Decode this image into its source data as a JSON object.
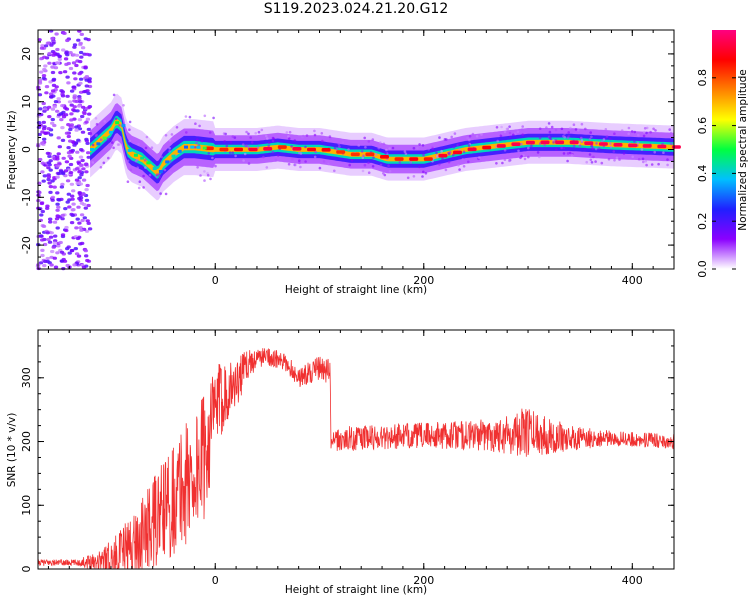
{
  "title": "S119.2023.024.21.20.G12",
  "chart_data": [
    {
      "type": "heatmap",
      "title": "S119.2023.024.21.20.G12",
      "xlabel": "Height of straight line (km)",
      "ylabel": "Frequency (Hz)",
      "xlim": [
        -170,
        440
      ],
      "ylim": [
        -25,
        25
      ],
      "xticks": [
        0,
        200,
        400
      ],
      "yticks": [
        -20,
        -10,
        0,
        10,
        20
      ],
      "colorbar": {
        "label": "Normalized spectral amplitude",
        "range": [
          0,
          1
        ],
        "ticks": [
          0.0,
          0.2,
          0.4,
          0.6,
          0.8
        ],
        "colormap": "rainbow",
        "colors": [
          "#ffffff",
          "#8b00ff",
          "#2020ff",
          "#00c0ff",
          "#00ff40",
          "#ffff00",
          "#ff8000",
          "#ff0000",
          "#ff0080"
        ]
      },
      "ridge": {
        "x": [
          -120,
          -110,
          -100,
          -95,
          -90,
          -85,
          -80,
          -70,
          -60,
          -55,
          -50,
          -40,
          -30,
          -20,
          0,
          20,
          40,
          60,
          80,
          100,
          115,
          130,
          150,
          165,
          180,
          200,
          220,
          240,
          260,
          280,
          300,
          340,
          380,
          440
        ],
        "y": [
          0,
          2,
          4,
          6,
          5,
          0,
          -1,
          -2,
          -4,
          -5,
          -3,
          -1,
          0.5,
          0.5,
          0,
          0,
          0,
          0.5,
          0,
          0,
          -0.5,
          -1,
          -1,
          -2,
          -2,
          -2,
          -1,
          0,
          0.5,
          1,
          1.5,
          1.5,
          1,
          0.5
        ]
      },
      "noise_region_x": [
        -170,
        -120
      ]
    },
    {
      "type": "line",
      "xlabel": "Height of straight line (km)",
      "ylabel": "SNR (10 * v/v)",
      "xlim": [
        -170,
        440
      ],
      "ylim": [
        0,
        375
      ],
      "xticks": [
        0,
        200,
        400
      ],
      "yticks": [
        0,
        100,
        200,
        300
      ],
      "color": "#f03030",
      "envelope": {
        "x": [
          -170,
          -130,
          -100,
          -80,
          -60,
          -40,
          -20,
          -10,
          0,
          10,
          20,
          30,
          40,
          50,
          70,
          80,
          100,
          110,
          111,
          130,
          200,
          260,
          300,
          340,
          380,
          440
        ],
        "mean": [
          10,
          10,
          15,
          35,
          70,
          110,
          150,
          180,
          250,
          280,
          290,
          320,
          330,
          335,
          320,
          300,
          315,
          310,
          200,
          205,
          210,
          210,
          215,
          205,
          205,
          200
        ],
        "spread": [
          5,
          5,
          30,
          50,
          70,
          90,
          110,
          100,
          70,
          50,
          40,
          25,
          15,
          15,
          15,
          15,
          20,
          20,
          15,
          20,
          20,
          25,
          40,
          20,
          12,
          12
        ]
      }
    }
  ]
}
